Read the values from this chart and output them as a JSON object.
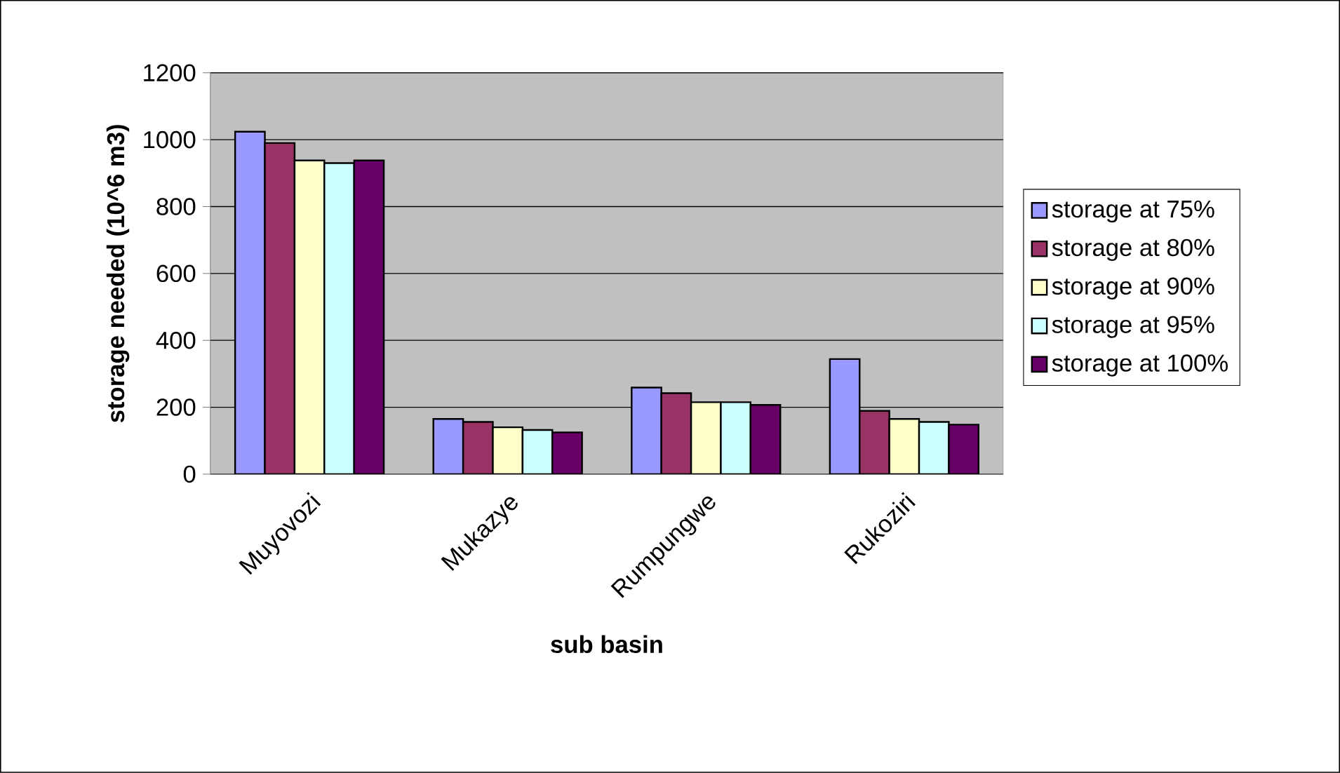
{
  "chart_data": {
    "type": "bar",
    "xlabel": "sub basin",
    "ylabel": "storage needed (10^6 m3)",
    "categories": [
      "Muyovozi",
      "Mukazye",
      "Rumpungwe",
      "Rukoziri"
    ],
    "series": [
      {
        "name": "storage at  75%",
        "color": "#9999ff",
        "values": [
          1024,
          165,
          259,
          344
        ]
      },
      {
        "name": "storage at 80%",
        "color": "#993366",
        "values": [
          990,
          156,
          242,
          189
        ]
      },
      {
        "name": "storage at  90%",
        "color": "#ffffcc",
        "values": [
          938,
          140,
          215,
          165
        ]
      },
      {
        "name": "storage at  95%",
        "color": "#ccffff",
        "values": [
          930,
          132,
          215,
          156
        ]
      },
      {
        "name": "storage at 100%",
        "color": "#660066",
        "values": [
          938,
          125,
          207,
          148
        ]
      }
    ],
    "ylim": [
      0,
      1200
    ],
    "yticks": [
      0,
      200,
      400,
      600,
      800,
      1000,
      1200
    ],
    "grid": "y",
    "legend": "right"
  }
}
